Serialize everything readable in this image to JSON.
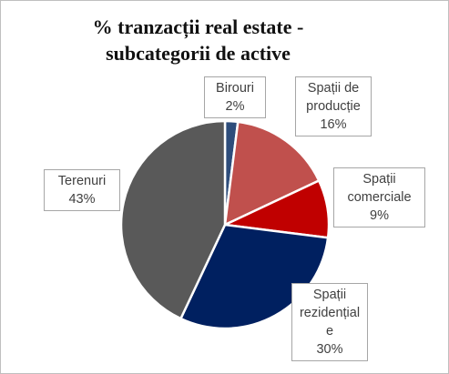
{
  "chart_data": {
    "type": "pie",
    "title": "% tranzacții real estate - subcategorii de active",
    "title_lines": [
      "% tranzacții real estate -",
      "subcategorii de active"
    ],
    "slices": [
      {
        "name": "Birouri",
        "name_lines": [
          "Birouri"
        ],
        "value": 2,
        "label": "2%",
        "color": "#2e4d7b"
      },
      {
        "name": "Spații de producție",
        "name_lines": [
          "Spații de",
          "producție"
        ],
        "value": 16,
        "label": "16%",
        "color": "#c0504d"
      },
      {
        "name": "Spații comerciale",
        "name_lines": [
          "Spații",
          "comerciale"
        ],
        "value": 9,
        "label": "9%",
        "color": "#c00000"
      },
      {
        "name": "Spații rezidențiale",
        "name_lines": [
          "Spații",
          "rezidențial",
          "e"
        ],
        "value": 30,
        "label": "30%",
        "color": "#002060"
      },
      {
        "name": "Terenuri",
        "name_lines": [
          "Terenuri"
        ],
        "value": 43,
        "label": "43%",
        "color": "#595959"
      }
    ],
    "legend": "none"
  }
}
